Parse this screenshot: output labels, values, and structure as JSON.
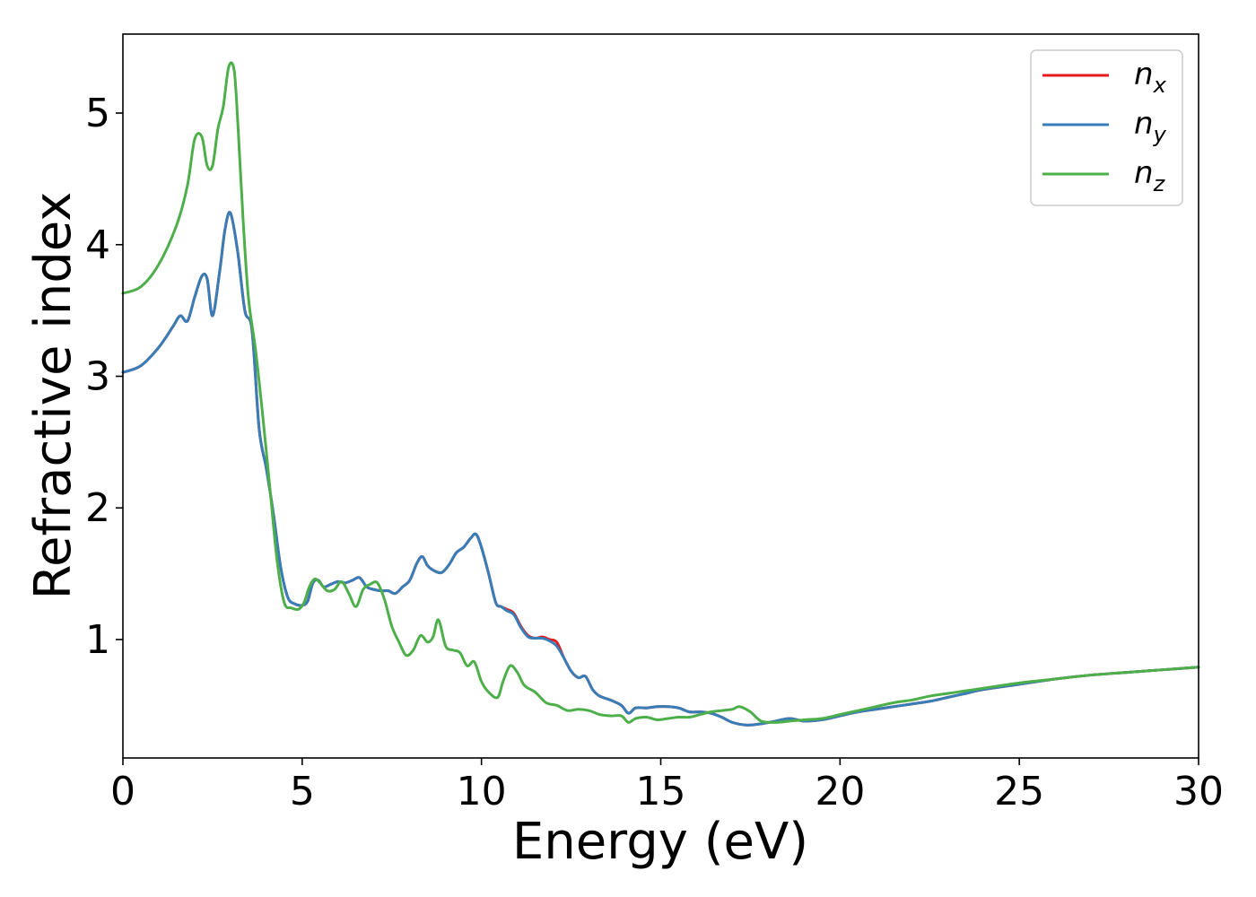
{
  "chart_data": {
    "type": "line",
    "title": "",
    "xlabel": "Energy (eV)",
    "ylabel": "Refractive index",
    "xlim": [
      0,
      30
    ],
    "ylim": [
      0.1,
      5.6
    ],
    "xticks": [
      0,
      5,
      10,
      15,
      20,
      25,
      30
    ],
    "yticks": [
      1,
      2,
      3,
      4,
      5
    ],
    "xtick_labels": [
      "0",
      "5",
      "10",
      "15",
      "20",
      "25",
      "30"
    ],
    "ytick_labels": [
      "1",
      "2",
      "3",
      "4",
      "5"
    ],
    "grid": false,
    "legend_position": "top-right",
    "series": [
      {
        "name": "n_x",
        "legend_main": "n",
        "legend_sub": "x",
        "color": "#e41a1c",
        "x": [
          0,
          0.5,
          1.0,
          1.4,
          1.6,
          1.8,
          2.0,
          2.2,
          2.35,
          2.5,
          2.7,
          2.85,
          3.0,
          3.2,
          3.4,
          3.6,
          3.8,
          4.0,
          4.2,
          4.4,
          4.6,
          4.8,
          5.0,
          5.15,
          5.3,
          5.45,
          5.6,
          5.8,
          6.0,
          6.2,
          6.4,
          6.6,
          6.8,
          7.0,
          7.2,
          7.4,
          7.6,
          7.8,
          8.0,
          8.2,
          8.35,
          8.5,
          8.7,
          8.9,
          9.1,
          9.3,
          9.5,
          9.7,
          9.85,
          10.0,
          10.2,
          10.4,
          10.55,
          10.7,
          10.9,
          11.1,
          11.3,
          11.5,
          11.7,
          11.9,
          12.1,
          12.3,
          12.5,
          12.7,
          12.9,
          13.1,
          13.3,
          13.6,
          13.9,
          14.1,
          14.3,
          14.6,
          14.9,
          15.2,
          15.5,
          15.8,
          16.1,
          16.4,
          16.7,
          17.0,
          17.4,
          17.8,
          18.2,
          18.6,
          19.0,
          19.5,
          20.0,
          20.5,
          21.0,
          21.5,
          22.0,
          22.5,
          23.0,
          23.5,
          24.0,
          25.0,
          26.0,
          27.0,
          28.0,
          29.0,
          30.0
        ],
        "y": [
          3.03,
          3.08,
          3.22,
          3.38,
          3.46,
          3.42,
          3.6,
          3.76,
          3.74,
          3.46,
          3.8,
          4.12,
          4.24,
          3.95,
          3.5,
          3.35,
          2.6,
          2.3,
          1.95,
          1.55,
          1.32,
          1.27,
          1.26,
          1.29,
          1.43,
          1.45,
          1.4,
          1.42,
          1.44,
          1.43,
          1.45,
          1.47,
          1.4,
          1.38,
          1.37,
          1.37,
          1.35,
          1.4,
          1.45,
          1.58,
          1.63,
          1.56,
          1.52,
          1.51,
          1.57,
          1.66,
          1.7,
          1.77,
          1.8,
          1.7,
          1.5,
          1.28,
          1.25,
          1.23,
          1.2,
          1.1,
          1.03,
          1.01,
          1.02,
          1.0,
          0.98,
          0.86,
          0.76,
          0.71,
          0.72,
          0.62,
          0.57,
          0.54,
          0.5,
          0.44,
          0.48,
          0.48,
          0.49,
          0.49,
          0.48,
          0.45,
          0.45,
          0.44,
          0.41,
          0.37,
          0.35,
          0.36,
          0.38,
          0.4,
          0.38,
          0.39,
          0.42,
          0.45,
          0.47,
          0.49,
          0.51,
          0.53,
          0.56,
          0.59,
          0.62,
          0.66,
          0.7,
          0.73,
          0.75,
          0.77,
          0.79
        ]
      },
      {
        "name": "n_y",
        "legend_main": "n",
        "legend_sub": "y",
        "color": "#377eb8",
        "x": [
          0,
          0.5,
          1.0,
          1.4,
          1.6,
          1.8,
          2.0,
          2.2,
          2.35,
          2.5,
          2.7,
          2.85,
          3.0,
          3.2,
          3.4,
          3.6,
          3.8,
          4.0,
          4.2,
          4.4,
          4.6,
          4.8,
          5.0,
          5.15,
          5.3,
          5.45,
          5.6,
          5.8,
          6.0,
          6.2,
          6.4,
          6.6,
          6.8,
          7.0,
          7.2,
          7.4,
          7.6,
          7.8,
          8.0,
          8.2,
          8.35,
          8.5,
          8.7,
          8.9,
          9.1,
          9.3,
          9.5,
          9.7,
          9.85,
          10.0,
          10.2,
          10.4,
          10.55,
          10.7,
          10.9,
          11.1,
          11.3,
          11.5,
          11.7,
          11.9,
          12.1,
          12.3,
          12.5,
          12.7,
          12.9,
          13.1,
          13.3,
          13.6,
          13.9,
          14.1,
          14.3,
          14.6,
          14.9,
          15.2,
          15.5,
          15.8,
          16.1,
          16.4,
          16.7,
          17.0,
          17.4,
          17.8,
          18.2,
          18.6,
          19.0,
          19.5,
          20.0,
          20.5,
          21.0,
          21.5,
          22.0,
          22.5,
          23.0,
          23.5,
          24.0,
          25.0,
          26.0,
          27.0,
          28.0,
          29.0,
          30.0
        ],
        "y": [
          3.03,
          3.08,
          3.22,
          3.38,
          3.46,
          3.42,
          3.6,
          3.76,
          3.74,
          3.46,
          3.8,
          4.12,
          4.24,
          3.95,
          3.5,
          3.35,
          2.6,
          2.3,
          1.95,
          1.55,
          1.32,
          1.27,
          1.26,
          1.29,
          1.43,
          1.45,
          1.4,
          1.42,
          1.44,
          1.43,
          1.45,
          1.47,
          1.4,
          1.38,
          1.37,
          1.37,
          1.35,
          1.4,
          1.45,
          1.58,
          1.63,
          1.56,
          1.52,
          1.51,
          1.57,
          1.66,
          1.7,
          1.77,
          1.8,
          1.7,
          1.5,
          1.28,
          1.25,
          1.22,
          1.19,
          1.09,
          1.02,
          1.01,
          1.01,
          0.99,
          0.95,
          0.86,
          0.76,
          0.71,
          0.72,
          0.62,
          0.57,
          0.54,
          0.5,
          0.44,
          0.48,
          0.48,
          0.49,
          0.49,
          0.48,
          0.45,
          0.45,
          0.44,
          0.41,
          0.37,
          0.35,
          0.36,
          0.38,
          0.4,
          0.38,
          0.39,
          0.42,
          0.45,
          0.47,
          0.49,
          0.51,
          0.53,
          0.56,
          0.59,
          0.62,
          0.66,
          0.7,
          0.73,
          0.75,
          0.77,
          0.79
        ]
      },
      {
        "name": "n_z",
        "legend_main": "n",
        "legend_sub": "z",
        "color": "#4daf4a",
        "x": [
          0,
          0.5,
          1.0,
          1.5,
          1.8,
          2.0,
          2.2,
          2.35,
          2.5,
          2.65,
          2.8,
          2.95,
          3.1,
          3.2,
          3.35,
          3.5,
          3.7,
          3.9,
          4.1,
          4.3,
          4.5,
          4.7,
          4.9,
          5.05,
          5.2,
          5.35,
          5.5,
          5.7,
          5.9,
          6.1,
          6.3,
          6.5,
          6.7,
          6.9,
          7.1,
          7.3,
          7.5,
          7.7,
          7.9,
          8.1,
          8.3,
          8.5,
          8.65,
          8.8,
          9.0,
          9.2,
          9.4,
          9.6,
          9.8,
          10.0,
          10.2,
          10.45,
          10.6,
          10.8,
          11.0,
          11.2,
          11.5,
          11.8,
          12.1,
          12.4,
          12.7,
          13.0,
          13.3,
          13.6,
          13.9,
          14.1,
          14.3,
          14.6,
          14.9,
          15.2,
          15.5,
          15.8,
          16.1,
          16.4,
          16.7,
          17.0,
          17.2,
          17.5,
          17.8,
          18.2,
          18.6,
          19.0,
          19.5,
          20.0,
          20.5,
          21.0,
          21.5,
          22.0,
          22.5,
          23.0,
          23.5,
          24.0,
          25.0,
          26.0,
          27.0,
          28.0,
          29.0,
          30.0
        ],
        "y": [
          3.63,
          3.68,
          3.85,
          4.15,
          4.45,
          4.8,
          4.82,
          4.6,
          4.6,
          4.88,
          5.05,
          5.35,
          5.33,
          4.95,
          4.2,
          3.6,
          3.2,
          2.7,
          2.15,
          1.6,
          1.28,
          1.24,
          1.23,
          1.28,
          1.4,
          1.46,
          1.43,
          1.37,
          1.38,
          1.44,
          1.35,
          1.25,
          1.38,
          1.42,
          1.43,
          1.3,
          1.1,
          0.98,
          0.88,
          0.92,
          1.03,
          0.98,
          1.02,
          1.15,
          0.95,
          0.92,
          0.9,
          0.8,
          0.83,
          0.68,
          0.6,
          0.56,
          0.68,
          0.8,
          0.75,
          0.65,
          0.6,
          0.52,
          0.5,
          0.46,
          0.47,
          0.46,
          0.43,
          0.42,
          0.42,
          0.37,
          0.4,
          0.41,
          0.39,
          0.4,
          0.41,
          0.41,
          0.43,
          0.45,
          0.46,
          0.47,
          0.49,
          0.45,
          0.38,
          0.37,
          0.38,
          0.39,
          0.4,
          0.43,
          0.46,
          0.49,
          0.52,
          0.54,
          0.57,
          0.59,
          0.61,
          0.63,
          0.67,
          0.7,
          0.73,
          0.75,
          0.77,
          0.79
        ]
      }
    ]
  }
}
